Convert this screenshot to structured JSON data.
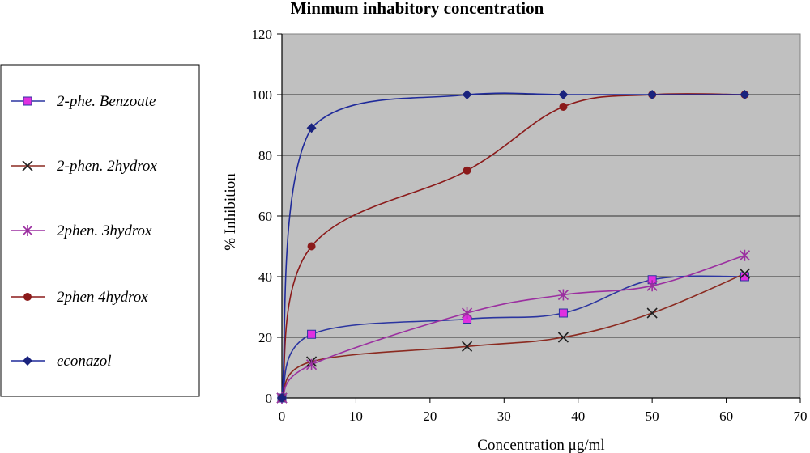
{
  "chart_data": {
    "type": "line",
    "title": "Minmum inhabitory concentration",
    "xlabel": "Concentration μg/ml",
    "ylabel": "% Inhibition",
    "xlim": [
      0,
      70
    ],
    "ylim": [
      0,
      120
    ],
    "xticks": [
      0,
      10,
      20,
      30,
      40,
      50,
      60,
      70
    ],
    "yticks": [
      0,
      20,
      40,
      60,
      80,
      100,
      120
    ],
    "grid": "horizontal",
    "plot_background": "#c0c0c0",
    "legend_position": "left",
    "series": [
      {
        "name": "2-phe. Benzoate",
        "color": "#2b35a0",
        "marker": "square",
        "marker_color": "#e030e0",
        "x": [
          0,
          4,
          25,
          38,
          50,
          62.5
        ],
        "y": [
          0,
          21,
          26,
          28,
          39,
          40
        ]
      },
      {
        "name": "2-phen. 2hydrox",
        "color": "#8b2a20",
        "marker": "x",
        "marker_color": "#202020",
        "x": [
          0,
          4,
          25,
          38,
          50,
          62.5
        ],
        "y": [
          0,
          12,
          17,
          20,
          28,
          41
        ]
      },
      {
        "name": "2phen. 3hydrox",
        "color": "#9b2fa0",
        "marker": "asterisk",
        "marker_color": "#9b2fa0",
        "x": [
          0,
          4,
          25,
          38,
          50,
          62.5
        ],
        "y": [
          0,
          11,
          28,
          34,
          37,
          47
        ]
      },
      {
        "name": "2phen 4hydrox",
        "color": "#8b1a1a",
        "marker": "circle",
        "marker_color": "#8b1a1a",
        "x": [
          0,
          4,
          25,
          38,
          50,
          62.5
        ],
        "y": [
          0,
          50,
          75,
          96,
          100,
          100
        ]
      },
      {
        "name": "econazol",
        "color": "#1f2a9a",
        "marker": "diamond",
        "marker_color": "#1a237e",
        "x": [
          0,
          4,
          25,
          38,
          50,
          62.5
        ],
        "y": [
          0,
          89,
          100,
          100,
          100,
          100
        ]
      }
    ]
  }
}
